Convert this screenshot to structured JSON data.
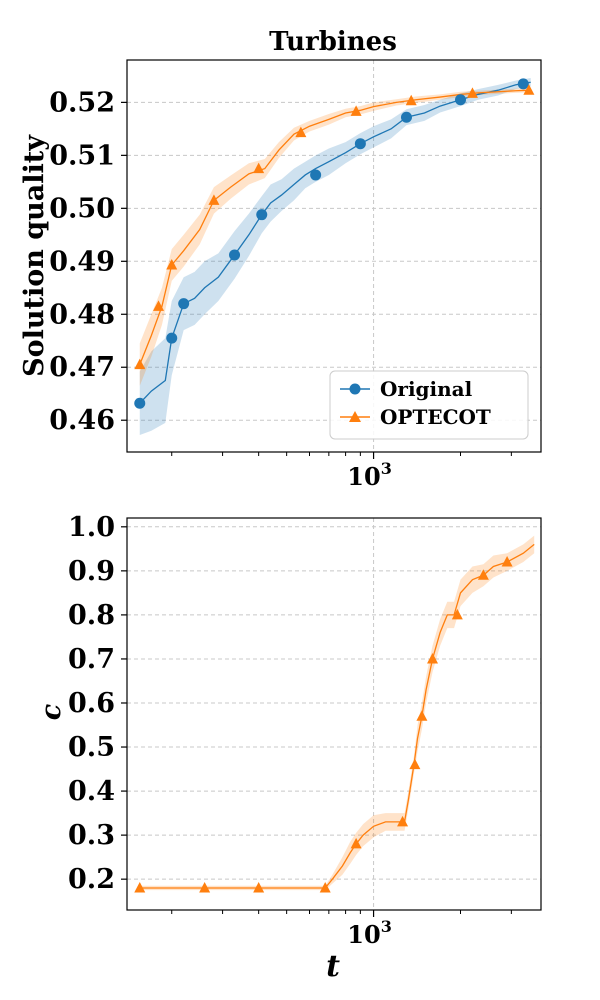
{
  "colors": {
    "original": "#1f77b4",
    "optecot": "#ff7f0e",
    "grid": "#c8c8c8"
  },
  "chart_data": [
    {
      "type": "line",
      "title": "Turbines",
      "xlabel": "",
      "ylabel": "Solution quality",
      "xscale": "log",
      "xlim": [
        140,
        3800
      ],
      "ylim": [
        0.454,
        0.528
      ],
      "xticks": [
        {
          "value": 1000,
          "base": "10",
          "exp": "3"
        }
      ],
      "yticks": [
        0.46,
        0.47,
        0.48,
        0.49,
        0.5,
        0.51,
        0.52
      ],
      "ytick_labels": [
        "0.46",
        "0.47",
        "0.48",
        "0.49",
        "0.50",
        "0.51",
        "0.52"
      ],
      "grid": true,
      "legend_position": "lower-right",
      "series": [
        {
          "name": "Original",
          "color": "#1f77b4",
          "marker": "circle",
          "x": [
            155,
            170,
            190,
            200,
            220,
            240,
            260,
            290,
            330,
            370,
            410,
            440,
            480,
            530,
            580,
            630,
            700,
            800,
            900,
            1000,
            1150,
            1300,
            1500,
            1700,
            2000,
            2300,
            2700,
            3100,
            3500
          ],
          "y": [
            0.4632,
            0.4655,
            0.4675,
            0.4755,
            0.482,
            0.483,
            0.485,
            0.487,
            0.4912,
            0.495,
            0.4988,
            0.501,
            0.5025,
            0.5045,
            0.5063,
            0.5075,
            0.5088,
            0.5105,
            0.5122,
            0.5135,
            0.515,
            0.5172,
            0.518,
            0.5193,
            0.5205,
            0.5215,
            0.5223,
            0.5233,
            0.5238
          ],
          "band": [
            0.006,
            0.0075,
            0.008,
            0.007,
            0.005,
            0.005,
            0.005,
            0.0045,
            0.0045,
            0.004,
            0.0035,
            0.0035,
            0.003,
            0.003,
            0.0025,
            0.0025,
            0.0025,
            0.002,
            0.002,
            0.002,
            0.0018,
            0.0015,
            0.0015,
            0.0012,
            0.0012,
            0.001,
            0.001,
            0.0008,
            0.0008
          ],
          "marker_x": [
            155,
            200,
            220,
            330,
            410,
            630,
            900,
            1300,
            2000,
            3300
          ],
          "marker_y": [
            0.4632,
            0.4755,
            0.482,
            0.4912,
            0.4988,
            0.5063,
            0.5122,
            0.5172,
            0.5205,
            0.5235
          ]
        },
        {
          "name": "OPTECOT",
          "color": "#ff7f0e",
          "marker": "triangle",
          "x": [
            155,
            170,
            185,
            200,
            220,
            250,
            280,
            320,
            370,
            420,
            470,
            530,
            600,
            700,
            800,
            900,
            1000,
            1200,
            1400,
            1700,
            2000,
            2300,
            2700,
            3100,
            3500
          ],
          "y": [
            0.4705,
            0.476,
            0.4815,
            0.4893,
            0.492,
            0.496,
            0.5015,
            0.504,
            0.5065,
            0.5075,
            0.511,
            0.514,
            0.5155,
            0.5168,
            0.518,
            0.5185,
            0.5192,
            0.52,
            0.5205,
            0.521,
            0.5215,
            0.5218,
            0.522,
            0.5222,
            0.5223
          ],
          "band": [
            0.004,
            0.004,
            0.0035,
            0.003,
            0.003,
            0.0028,
            0.0025,
            0.0022,
            0.002,
            0.0018,
            0.0015,
            0.0012,
            0.001,
            0.001,
            0.0008,
            0.0008,
            0.0008,
            0.0006,
            0.0006,
            0.0005,
            0.0005,
            0.0004,
            0.0004,
            0.0004,
            0.0004
          ],
          "marker_x": [
            155,
            180,
            200,
            280,
            400,
            560,
            870,
            1350,
            2200,
            3450
          ],
          "marker_y": [
            0.4705,
            0.4815,
            0.4893,
            0.5015,
            0.5075,
            0.5143,
            0.5183,
            0.5203,
            0.5217,
            0.5223
          ]
        }
      ]
    },
    {
      "type": "line",
      "title": "",
      "xlabel": "t",
      "ylabel": "c",
      "xscale": "log",
      "xlim": [
        140,
        3800
      ],
      "ylim": [
        0.13,
        1.02
      ],
      "xticks": [
        {
          "value": 1000,
          "base": "10",
          "exp": "3"
        }
      ],
      "yticks": [
        0.2,
        0.3,
        0.4,
        0.5,
        0.6,
        0.7,
        0.8,
        0.9,
        1.0
      ],
      "ytick_labels": [
        "0.2",
        "0.3",
        "0.4",
        "0.5",
        "0.6",
        "0.7",
        "0.8",
        "0.9",
        "1.0"
      ],
      "grid": true,
      "series": [
        {
          "name": "OPTECOT",
          "color": "#ff7f0e",
          "marker": "triangle",
          "x": [
            155,
            250,
            400,
            600,
            680,
            720,
            780,
            830,
            870,
            920,
            1000,
            1100,
            1200,
            1280,
            1320,
            1380,
            1420,
            1470,
            1520,
            1600,
            1700,
            1800,
            1900,
            2000,
            2200,
            2400,
            2600,
            2900,
            3300,
            3600
          ],
          "y": [
            0.18,
            0.18,
            0.18,
            0.18,
            0.18,
            0.2,
            0.23,
            0.26,
            0.28,
            0.3,
            0.32,
            0.33,
            0.33,
            0.33,
            0.38,
            0.46,
            0.52,
            0.57,
            0.63,
            0.7,
            0.76,
            0.8,
            0.8,
            0.85,
            0.88,
            0.89,
            0.91,
            0.92,
            0.94,
            0.96
          ],
          "band": [
            0.005,
            0.005,
            0.005,
            0.005,
            0.005,
            0.01,
            0.02,
            0.025,
            0.025,
            0.025,
            0.025,
            0.02,
            0.02,
            0.02,
            0.02,
            0.02,
            0.03,
            0.03,
            0.03,
            0.03,
            0.03,
            0.03,
            0.03,
            0.03,
            0.03,
            0.025,
            0.025,
            0.02,
            0.02,
            0.02
          ],
          "marker_x": [
            155,
            260,
            400,
            680,
            870,
            1260,
            1390,
            1470,
            1600,
            1950,
            2400,
            2900
          ],
          "marker_y": [
            0.18,
            0.18,
            0.18,
            0.18,
            0.28,
            0.33,
            0.46,
            0.57,
            0.7,
            0.8,
            0.89,
            0.92
          ]
        }
      ]
    }
  ]
}
